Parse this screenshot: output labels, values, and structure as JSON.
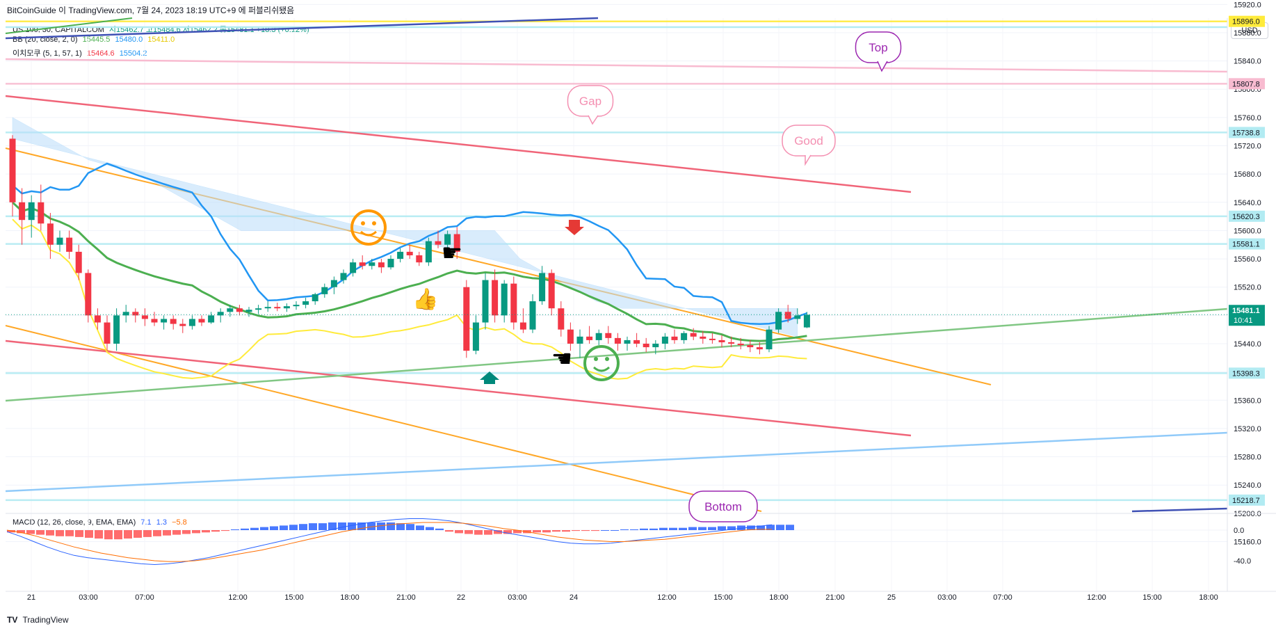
{
  "header": {
    "attribution": "BitCoinGuide 이 TradingView.com, 7월 24, 2023 18:19 UTC+9 에 퍼블리쉬됐음"
  },
  "legend": {
    "symbol": "US 100, 30, CAPITALCOM",
    "ohlc": "시15462.7  고15484.6  저15462.2  종15481.1  +18.3 (+0.12%)",
    "bb_label": "BB (20, close, 2, 0)",
    "bb_values": [
      "15445.5",
      "15480.0",
      "15411.0"
    ],
    "ichimoku_label": "이치모쿠 (5, 1, 57, 1)",
    "ichimoku_values": [
      "15464.6",
      "15504.2"
    ],
    "macd_label": "MACD (12, 26, close, 9, EMA, EMA)",
    "macd_values": [
      "7.1",
      "1.3",
      "−5.8"
    ]
  },
  "currency_button": "USD",
  "footer": {
    "logo": "TV",
    "brand": "TradingView"
  },
  "colors": {
    "up": "#089981",
    "down": "#f23645",
    "bb_basis": "#4caf50",
    "bb_upper": "#2196f3",
    "bb_lower": "#ffeb3b",
    "cloud": "#bbdefb",
    "orange_channel": "#ffa726",
    "red_channel": "#f06478",
    "green_trend": "#81c784",
    "blue_trend": "#90caf9",
    "hline_cyan": "#b2ebf2",
    "hline_pink": "#f8bbd0",
    "hline_yellow": "#fff176",
    "callout_pink": "#f48fb1",
    "callout_purple": "#9c27b0"
  },
  "annotations": {
    "callouts": [
      {
        "text": "Top"
      },
      {
        "text": "Gap"
      },
      {
        "text": "Good"
      },
      {
        "text": "Bottom"
      }
    ],
    "icons": [
      "smiley-orange",
      "pointing-hand-right",
      "thumbs-up-purple",
      "pointing-hand-left",
      "smiley-green",
      "arrow-down-red",
      "arrow-up-green"
    ]
  },
  "chart_data": [
    {
      "type": "candlestick",
      "title": "US 100, 30, CAPITALCOM",
      "x_ticks": [
        "21",
        "03:00",
        "07:00",
        "12:00",
        "15:00",
        "18:00",
        "21:00",
        "22",
        "03:00",
        "24",
        "12:00",
        "15:00",
        "18:00",
        "21:00",
        "25",
        "03:00",
        "07:00",
        "12:00",
        "15:00",
        "18:00"
      ],
      "y_ticks": [
        15920,
        15880,
        15840,
        15800,
        15760,
        15720,
        15680,
        15640,
        15600,
        15560,
        15520,
        15480,
        15440,
        15400,
        15360,
        15320,
        15280,
        15240,
        15200,
        15160
      ],
      "ylim": [
        15150,
        15980
      ],
      "price_labels": [
        {
          "value": "15896.0",
          "color": "#ffeb3b"
        },
        {
          "value": "15807.8",
          "color": "#f8bbd0"
        },
        {
          "value": "15738.8",
          "color": "#b2ebf2"
        },
        {
          "value": "15620.3",
          "color": "#b2ebf2"
        },
        {
          "value": "15581.1",
          "color": "#b2ebf2"
        },
        {
          "value": "15398.3",
          "color": "#b2ebf2"
        },
        {
          "value": "15218.7",
          "color": "#b2ebf2"
        }
      ],
      "last_price": {
        "value": "15481.1",
        "countdown": "10:41"
      },
      "horizontal_levels": [
        15896.0,
        15807.8,
        15738.8,
        15620.3,
        15581.1,
        15398.3,
        15218.7
      ],
      "candles": [
        [
          15730,
          15735,
          15620,
          15640
        ],
        [
          15640,
          15660,
          15580,
          15615
        ],
        [
          15615,
          15650,
          15590,
          15640
        ],
        [
          15640,
          15665,
          15600,
          15610
        ],
        [
          15610,
          15625,
          15560,
          15580
        ],
        [
          15580,
          15600,
          15570,
          15590
        ],
        [
          15590,
          15600,
          15560,
          15570
        ],
        [
          15570,
          15580,
          15530,
          15540
        ],
        [
          15540,
          15545,
          15470,
          15480
        ],
        [
          15480,
          15490,
          15460,
          15470
        ],
        [
          15470,
          15480,
          15430,
          15440
        ],
        [
          15440,
          15490,
          15430,
          15480
        ],
        [
          15480,
          15495,
          15470,
          15485
        ],
        [
          15485,
          15490,
          15470,
          15480
        ],
        [
          15480,
          15490,
          15465,
          15475
        ],
        [
          15475,
          15485,
          15465,
          15470
        ],
        [
          15470,
          15480,
          15460,
          15475
        ],
        [
          15475,
          15480,
          15460,
          15468
        ],
        [
          15468,
          15475,
          15455,
          15465
        ],
        [
          15465,
          15480,
          15460,
          15475
        ],
        [
          15475,
          15480,
          15465,
          15470
        ],
        [
          15470,
          15485,
          15468,
          15480
        ],
        [
          15480,
          15490,
          15470,
          15485
        ],
        [
          15485,
          15495,
          15478,
          15490
        ],
        [
          15490,
          15495,
          15480,
          15485
        ],
        [
          15485,
          15492,
          15478,
          15488
        ],
        [
          15488,
          15495,
          15482,
          15490
        ],
        [
          15490,
          15500,
          15485,
          15492
        ],
        [
          15492,
          15498,
          15486,
          15490
        ],
        [
          15490,
          15497,
          15485,
          15493
        ],
        [
          15493,
          15500,
          15488,
          15495
        ],
        [
          15495,
          15505,
          15490,
          15500
        ],
        [
          15500,
          15512,
          15495,
          15510
        ],
        [
          15510,
          15525,
          15505,
          15520
        ],
        [
          15520,
          15535,
          15510,
          15530
        ],
        [
          15530,
          15545,
          15525,
          15540
        ],
        [
          15540,
          15560,
          15535,
          15555
        ],
        [
          15555,
          15565,
          15545,
          15550
        ],
        [
          15550,
          15560,
          15545,
          15555
        ],
        [
          15555,
          15560,
          15540,
          15548
        ],
        [
          15548,
          15565,
          15545,
          15560
        ],
        [
          15560,
          15575,
          15555,
          15570
        ],
        [
          15570,
          15580,
          15560,
          15565
        ],
        [
          15565,
          15570,
          15550,
          15555
        ],
        [
          15555,
          15590,
          15550,
          15585
        ],
        [
          15585,
          15600,
          15575,
          15580
        ],
        [
          15580,
          15600,
          15570,
          15595
        ],
        [
          15595,
          15605,
          15560,
          15570
        ],
        [
          15520,
          15530,
          15420,
          15430
        ],
        [
          15430,
          15480,
          15425,
          15470
        ],
        [
          15470,
          15540,
          15460,
          15530
        ],
        [
          15530,
          15545,
          15470,
          15480
        ],
        [
          15480,
          15530,
          15470,
          15525
        ],
        [
          15525,
          15535,
          15460,
          15470
        ],
        [
          15470,
          15490,
          15455,
          15460
        ],
        [
          15460,
          15510,
          15455,
          15500
        ],
        [
          15500,
          15550,
          15495,
          15540
        ],
        [
          15540,
          15545,
          15480,
          15490
        ],
        [
          15490,
          15500,
          15450,
          15460
        ],
        [
          15460,
          15470,
          15430,
          15440
        ],
        [
          15440,
          15460,
          15420,
          15450
        ],
        [
          15450,
          15465,
          15440,
          15445
        ],
        [
          15445,
          15460,
          15438,
          15455
        ],
        [
          15455,
          15465,
          15440,
          15448
        ],
        [
          15448,
          15455,
          15430,
          15440
        ],
        [
          15440,
          15450,
          15430,
          15445
        ],
        [
          15445,
          15455,
          15435,
          15440
        ],
        [
          15440,
          15448,
          15428,
          15435
        ],
        [
          15435,
          15445,
          15425,
          15440
        ],
        [
          15440,
          15455,
          15432,
          15450
        ],
        [
          15450,
          15460,
          15440,
          15445
        ],
        [
          15445,
          15458,
          15440,
          15455
        ],
        [
          15455,
          15462,
          15445,
          15450
        ],
        [
          15450,
          15458,
          15440,
          15447
        ],
        [
          15447,
          15455,
          15440,
          15445
        ],
        [
          15445,
          15452,
          15435,
          15442
        ],
        [
          15442,
          15450,
          15435,
          15440
        ],
        [
          15440,
          15448,
          15432,
          15438
        ],
        [
          15438,
          15445,
          15428,
          15435
        ],
        [
          15435,
          15442,
          15425,
          15432
        ],
        [
          15432,
          15465,
          15428,
          15460
        ],
        [
          15460,
          15490,
          15455,
          15485
        ],
        [
          15485,
          15495,
          15470,
          15475
        ],
        [
          15475,
          15490,
          15468,
          15480
        ],
        [
          15463,
          15485,
          15462,
          15481
        ]
      ]
    },
    {
      "type": "bar",
      "title": "MACD (12, 26, close, 9, EMA, EMA)",
      "y_ticks": [
        0.0,
        -40.0
      ],
      "ylim": [
        -75,
        25
      ],
      "histogram": [
        -3,
        -4,
        -5,
        -6,
        -7,
        -8,
        -8,
        -9,
        -10,
        -11,
        -12,
        -12,
        -11,
        -10,
        -9,
        -8,
        -7,
        -6,
        -5,
        -4,
        -3,
        -2,
        -1,
        1,
        2,
        3,
        4,
        5,
        6,
        7,
        8,
        9,
        9,
        10,
        10,
        10,
        10,
        10,
        10,
        10,
        9,
        8,
        6,
        4,
        2,
        -2,
        -4,
        -5,
        -6,
        -6,
        -5,
        -5,
        -4,
        -4,
        -3,
        -3,
        -2,
        -2,
        -1,
        -1,
        -1,
        0,
        0,
        1,
        1,
        2,
        2,
        3,
        3,
        3,
        4,
        4,
        4,
        5,
        5,
        6,
        6,
        6,
        7,
        7,
        7
      ],
      "macd_line": [
        -2,
        -8,
        -15,
        -22,
        -28,
        -33,
        -36,
        -38,
        -40,
        -42,
        -44,
        -45,
        -44,
        -42,
        -39,
        -36,
        -32,
        -28,
        -24,
        -20,
        -16,
        -12,
        -8,
        -4,
        0,
        4,
        7,
        10,
        12,
        14,
        15,
        15,
        14,
        12,
        9,
        5,
        1,
        -3,
        -6,
        -9,
        -12,
        -15,
        -17,
        -18,
        -18,
        -17,
        -15,
        -13,
        -11,
        -9,
        -7,
        -5,
        -3,
        -1,
        1,
        3,
        5,
        7
      ],
      "signal_line": [
        0,
        -3,
        -7,
        -12,
        -17,
        -22,
        -26,
        -30,
        -33,
        -36,
        -38,
        -40,
        -41,
        -41,
        -40,
        -38,
        -35,
        -32,
        -29,
        -26,
        -22,
        -18,
        -14,
        -10,
        -6,
        -2,
        1,
        4,
        6,
        8,
        9,
        10,
        10,
        10,
        9,
        7,
        5,
        2,
        0,
        -3,
        -6,
        -9,
        -11,
        -13,
        -14,
        -15,
        -15,
        -14,
        -13,
        -12,
        -10,
        -8,
        -6,
        -4,
        -2,
        0,
        1,
        1
      ]
    }
  ]
}
